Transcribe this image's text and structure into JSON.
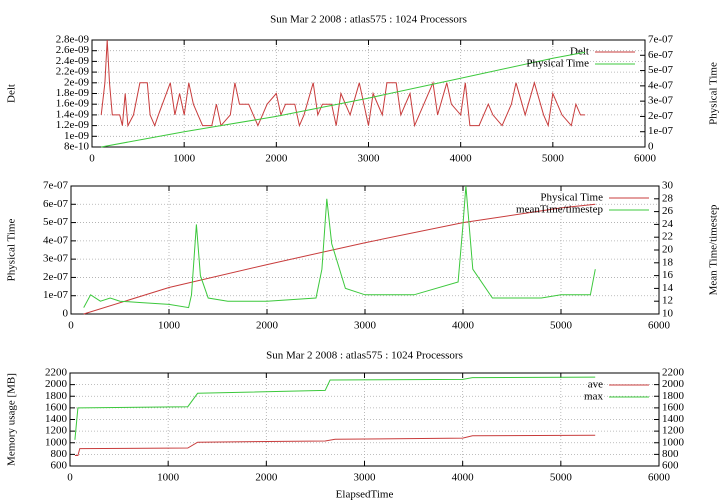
{
  "chart_data": [
    {
      "type": "line",
      "title": "Sun Mar 2 2008 : atlas575 : 1024 Processors",
      "ylabel": "Delt",
      "y2label": "Physical Time",
      "xlim": [
        0,
        6000
      ],
      "xticks": [
        0,
        1000,
        2000,
        3000,
        4000,
        5000,
        6000
      ],
      "ylim": [
        8e-10,
        2.8e-09
      ],
      "yticks": [
        {
          "value": 8e-10,
          "label": "8e-10"
        },
        {
          "value": 1e-09,
          "label": "1e-09"
        },
        {
          "value": 1.2e-09,
          "label": "1.2e-09"
        },
        {
          "value": 1.4e-09,
          "label": "1.4e-09"
        },
        {
          "value": 1.6e-09,
          "label": "1.6e-09"
        },
        {
          "value": 1.8e-09,
          "label": "1.8e-09"
        },
        {
          "value": 2e-09,
          "label": "2e-09"
        },
        {
          "value": 2.2e-09,
          "label": "2.2e-09"
        },
        {
          "value": 2.4e-09,
          "label": "2.4e-09"
        },
        {
          "value": 2.6e-09,
          "label": "2.6e-09"
        },
        {
          "value": 2.8e-09,
          "label": "2.8e-09"
        }
      ],
      "y2lim": [
        0,
        7e-07
      ],
      "y2ticks": [
        0,
        {
          "value": 1e-07,
          "label": "1e-07"
        },
        {
          "value": 2e-07,
          "label": "2e-07"
        },
        {
          "value": 3e-07,
          "label": "3e-07"
        },
        {
          "value": 4e-07,
          "label": "4e-07"
        },
        {
          "value": 5e-07,
          "label": "5e-07"
        },
        {
          "value": 6e-07,
          "label": "6e-07"
        },
        {
          "value": 7e-07,
          "label": "7e-07"
        }
      ],
      "grid": true,
      "legend": "upper right",
      "series": [
        {
          "name": "Delt",
          "color": "#c83c3c",
          "axis": "y",
          "x": [
            100,
            140,
            165,
            190,
            220,
            300,
            330,
            360,
            390,
            450,
            520,
            600,
            630,
            680,
            720,
            850,
            900,
            950,
            1000,
            1050,
            1100,
            1150,
            1200,
            1300,
            1350,
            1400,
            1500,
            1550,
            1600,
            1700,
            1750,
            1800,
            1850,
            1900,
            2000,
            2050,
            2100,
            2200,
            2250,
            2300,
            2400,
            2450,
            2500,
            2600,
            2650,
            2700,
            2800,
            2900,
            2950,
            3000,
            3050,
            3150,
            3200,
            3300,
            3350,
            3450,
            3500,
            3600,
            3700,
            3750,
            3850,
            3900,
            4000,
            4050,
            4100,
            4200,
            4300,
            4350,
            4450,
            4550,
            4600,
            4700,
            4800,
            4900,
            4950,
            5000,
            5100,
            5200,
            5250,
            5300,
            5350
          ],
          "values": [
            1.4e-09,
            2e-09,
            2.8e-09,
            2e-09,
            1.4e-09,
            1.4e-09,
            1.2e-09,
            1.8e-09,
            1.2e-09,
            1.4e-09,
            2e-09,
            2e-09,
            1.4e-09,
            1.2e-09,
            1.4e-09,
            2e-09,
            1.4e-09,
            1.8e-09,
            1.4e-09,
            2e-09,
            1.6e-09,
            1.4e-09,
            1.2e-09,
            1.2e-09,
            1.6e-09,
            1.2e-09,
            1.4e-09,
            2e-09,
            1.6e-09,
            1.6e-09,
            1.4e-09,
            1.2e-09,
            1.4e-09,
            1.6e-09,
            1.8e-09,
            1.4e-09,
            1.6e-09,
            1.6e-09,
            1.2e-09,
            1.4e-09,
            2e-09,
            1.4e-09,
            1.6e-09,
            1.6e-09,
            1.2e-09,
            1.8e-09,
            1.4e-09,
            2e-09,
            1.6e-09,
            1.2e-09,
            1.8e-09,
            1.4e-09,
            2e-09,
            2e-09,
            1.4e-09,
            1.8e-09,
            1.2e-09,
            1.6e-09,
            2e-09,
            1.4e-09,
            2e-09,
            1.6e-09,
            1.4e-09,
            2e-09,
            1.2e-09,
            1.2e-09,
            1.6e-09,
            1.4e-09,
            1.2e-09,
            1.6e-09,
            2e-09,
            1.4e-09,
            2e-09,
            1.4e-09,
            1.2e-09,
            1.8e-09,
            1.4e-09,
            1.2e-09,
            1.6e-09,
            1.4e-09,
            1.4e-09
          ]
        },
        {
          "name": "Physical Time",
          "color": "#3cc83c",
          "axis": "y2",
          "x": [
            100,
            1000,
            2000,
            3000,
            4000,
            5000,
            5350
          ],
          "values": [
            0,
            1e-07,
            2e-07,
            3.2e-07,
            4.5e-07,
            5.8e-07,
            6.2e-07
          ]
        }
      ]
    },
    {
      "type": "line",
      "ylabel": "Physical Time",
      "y2label": "Mean Time/timestep",
      "xlim": [
        0,
        6000
      ],
      "xticks": [
        0,
        1000,
        2000,
        3000,
        4000,
        5000,
        6000
      ],
      "ylim": [
        0,
        7e-07
      ],
      "yticks": [
        0,
        {
          "value": 1e-07,
          "label": "1e-07"
        },
        {
          "value": 2e-07,
          "label": "2e-07"
        },
        {
          "value": 3e-07,
          "label": "3e-07"
        },
        {
          "value": 4e-07,
          "label": "4e-07"
        },
        {
          "value": 5e-07,
          "label": "5e-07"
        },
        {
          "value": 6e-07,
          "label": "6e-07"
        },
        {
          "value": 7e-07,
          "label": "7e-07"
        }
      ],
      "y2lim": [
        10,
        30
      ],
      "y2ticks": [
        10,
        12,
        14,
        16,
        18,
        20,
        22,
        24,
        26,
        28,
        30
      ],
      "grid": true,
      "legend": "upper right",
      "series": [
        {
          "name": "Physical Time",
          "color": "#c83c3c",
          "axis": "y",
          "x": [
            130,
            1000,
            2000,
            3000,
            4000,
            5000,
            5350
          ],
          "values": [
            0,
            1.45e-07,
            2.7e-07,
            3.9e-07,
            5e-07,
            5.8e-07,
            6e-07
          ]
        },
        {
          "name": "meanTime/timestep",
          "color": "#3cc83c",
          "axis": "y2",
          "x": [
            130,
            200,
            300,
            400,
            500,
            700,
            1000,
            1200,
            1230,
            1280,
            1320,
            1400,
            1600,
            2000,
            2500,
            2560,
            2610,
            2660,
            2800,
            3000,
            3500,
            3950,
            4000,
            4030,
            4100,
            4300,
            4800,
            5000,
            5300,
            5350
          ],
          "values": [
            11,
            13,
            12,
            12.5,
            12,
            11.8,
            11.5,
            11,
            13,
            24,
            16,
            12.5,
            12,
            12,
            12.5,
            17,
            28,
            21,
            14,
            13,
            13,
            15,
            24,
            30,
            17,
            12.5,
            12.5,
            13,
            13,
            17
          ]
        }
      ]
    },
    {
      "type": "line",
      "title": "Sun Mar 2 2008 : atlas575 : 1024 Processors",
      "xlabel": "ElapsedTime",
      "ylabel": "Memory usage [MB]",
      "xlim": [
        0,
        6000
      ],
      "xticks": [
        0,
        1000,
        2000,
        3000,
        4000,
        5000,
        6000
      ],
      "ylim": [
        600,
        2200
      ],
      "yticks": [
        600,
        800,
        1000,
        1200,
        1400,
        1600,
        1800,
        2000,
        2200
      ],
      "y2lim": [
        600,
        2200
      ],
      "y2ticks": [
        600,
        800,
        1000,
        1200,
        1400,
        1600,
        1800,
        2000,
        2200
      ],
      "grid": true,
      "legend": "upper right",
      "series": [
        {
          "name": "ave",
          "color": "#c83c3c",
          "axis": "y",
          "x": [
            50,
            80,
            100,
            1200,
            1300,
            2600,
            2700,
            4000,
            4100,
            5350
          ],
          "values": [
            780,
            780,
            900,
            910,
            1010,
            1030,
            1060,
            1080,
            1120,
            1130
          ]
        },
        {
          "name": "max",
          "color": "#3cc83c",
          "axis": "y",
          "x": [
            50,
            80,
            100,
            1200,
            1300,
            2600,
            2650,
            4000,
            4100,
            5350
          ],
          "values": [
            1050,
            1600,
            1600,
            1620,
            1850,
            1900,
            2080,
            2090,
            2120,
            2130
          ]
        }
      ]
    }
  ]
}
